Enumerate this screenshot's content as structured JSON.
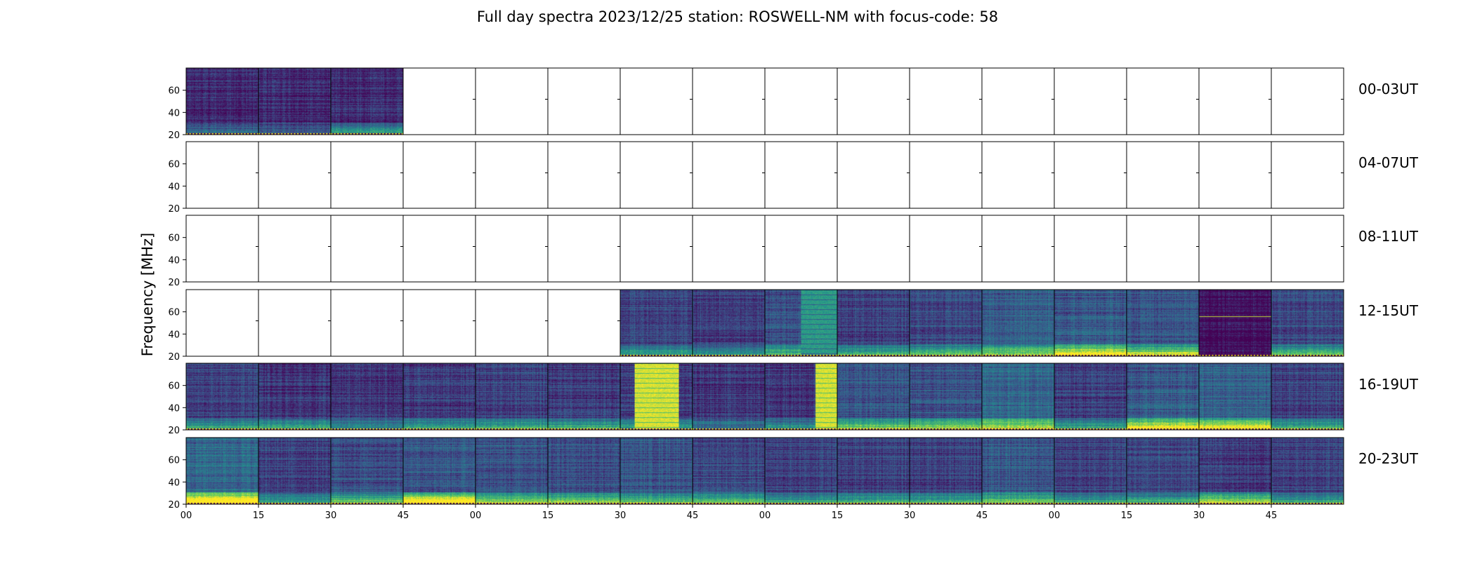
{
  "chart_data": {
    "type": "heatmap",
    "title": "Full day spectra 2023/12/25 station: ROSWELL-NM with focus-code: 58",
    "ylabel": "Frequency [MHz]",
    "xlabel": "",
    "yticks": [
      "20",
      "40",
      "60"
    ],
    "ylim": [
      20,
      80
    ],
    "xticks": [
      "00",
      "15",
      "30",
      "45",
      "00",
      "15",
      "30",
      "45",
      "00",
      "15",
      "30",
      "45",
      "00",
      "15",
      "30",
      "45"
    ],
    "panels_per_row": 16,
    "panel_minutes": 15,
    "colormap": [
      "#440154",
      "#3b528b",
      "#21918c",
      "#5ec962",
      "#fde725"
    ],
    "rows": [
      {
        "label": "00-03UT",
        "panels": [
          {
            "level": 0.12,
            "band": 0.25
          },
          {
            "level": 0.12,
            "band": 0.2
          },
          {
            "level": 0.14,
            "band": 0.45
          },
          null,
          null,
          null,
          null,
          null,
          null,
          null,
          null,
          null,
          null,
          null,
          null,
          null
        ]
      },
      {
        "label": "04-07UT",
        "panels": [
          null,
          null,
          null,
          null,
          null,
          null,
          null,
          null,
          null,
          null,
          null,
          null,
          null,
          null,
          null,
          null
        ]
      },
      {
        "label": "08-11UT",
        "panels": [
          null,
          null,
          null,
          null,
          null,
          null,
          null,
          null,
          null,
          null,
          null,
          null,
          null,
          null,
          null,
          null
        ]
      },
      {
        "label": "12-15UT",
        "panels": [
          null,
          null,
          null,
          null,
          null,
          null,
          {
            "level": 0.22,
            "band": 0.35
          },
          {
            "level": 0.18,
            "band": 0.3
          },
          {
            "level": 0.25,
            "band": 0.45,
            "burst": {
              "start": 0.5,
              "end": 1.0,
              "intensity": 0.6
            }
          },
          {
            "level": 0.2,
            "band": 0.45
          },
          {
            "level": 0.22,
            "band": 0.5
          },
          {
            "level": 0.3,
            "band": 0.55
          },
          {
            "level": 0.28,
            "band": 0.85
          },
          {
            "level": 0.26,
            "band": 0.7
          },
          {
            "level": 0.03,
            "band": 0.0,
            "line": 0.6
          },
          {
            "level": 0.22,
            "band": 0.5
          }
        ]
      },
      {
        "label": "16-19UT",
        "panels": [
          {
            "level": 0.2,
            "band": 0.4
          },
          {
            "level": 0.16,
            "band": 0.5
          },
          {
            "level": 0.16,
            "band": 0.35
          },
          {
            "level": 0.18,
            "band": 0.4
          },
          {
            "level": 0.2,
            "band": 0.45
          },
          {
            "level": 0.18,
            "band": 0.5
          },
          {
            "level": 0.18,
            "band": 0.4,
            "burst": {
              "start": 0.2,
              "end": 0.8,
              "intensity": 1.0
            }
          },
          {
            "level": 0.16,
            "band": 0.3
          },
          {
            "level": 0.16,
            "band": 0.4,
            "burst": {
              "start": 0.7,
              "end": 1.0,
              "intensity": 1.0
            }
          },
          {
            "level": 0.26,
            "band": 0.55
          },
          {
            "level": 0.25,
            "band": 0.6
          },
          {
            "level": 0.32,
            "band": 0.65
          },
          {
            "level": 0.18,
            "band": 0.45
          },
          {
            "level": 0.28,
            "band": 0.85
          },
          {
            "level": 0.3,
            "band": 0.8
          },
          {
            "level": 0.2,
            "band": 0.45
          }
        ]
      },
      {
        "label": "20-23UT",
        "panels": [
          {
            "level": 0.34,
            "band": 1.0
          },
          {
            "level": 0.2,
            "band": 0.35
          },
          {
            "level": 0.24,
            "band": 0.55
          },
          {
            "level": 0.28,
            "band": 0.95
          },
          {
            "level": 0.26,
            "band": 0.6
          },
          {
            "level": 0.24,
            "band": 0.6
          },
          {
            "level": 0.26,
            "band": 0.5
          },
          {
            "level": 0.22,
            "band": 0.55
          },
          {
            "level": 0.2,
            "band": 0.4
          },
          {
            "level": 0.2,
            "band": 0.45
          },
          {
            "level": 0.2,
            "band": 0.45
          },
          {
            "level": 0.28,
            "band": 0.5
          },
          {
            "level": 0.2,
            "band": 0.4
          },
          {
            "level": 0.22,
            "band": 0.45
          },
          {
            "level": 0.18,
            "band": 0.75
          },
          {
            "level": 0.2,
            "band": 0.4
          }
        ]
      }
    ]
  }
}
